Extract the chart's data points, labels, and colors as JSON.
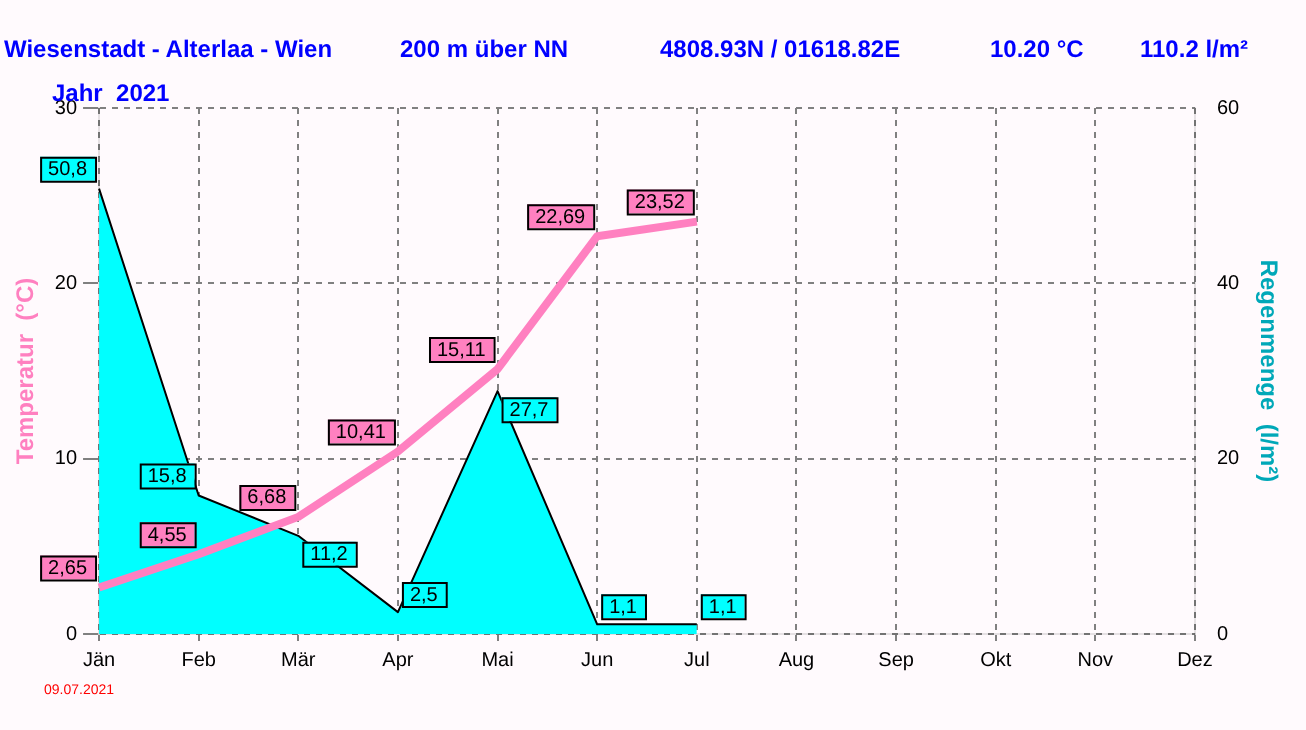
{
  "chart_data": {
    "type": "line",
    "title": "Wiesenstadt - Alterlaa - Wien",
    "subtitle": "Jahr  2021",
    "annotations": [
      "200 m über NN",
      "4808.93N / 01618.82E",
      "10.20 °C",
      "110.2 l/m²",
      "09.07.2021"
    ],
    "ylabel": "Temperatur  (°C)",
    "y2label": "Regenmenge  (l/m²)",
    "categories": [
      "Jän",
      "Feb",
      "Mär",
      "Apr",
      "Mai",
      "Jun",
      "Jul",
      "Aug",
      "Sep",
      "Okt",
      "Nov",
      "Dez"
    ],
    "series": [
      {
        "type": "area",
        "axis": "y2",
        "color": "#00ffff",
        "values": [
          50.8,
          15.8,
          11.2,
          2.5,
          27.7,
          1.1,
          1.1,
          null,
          null,
          null,
          null,
          null
        ],
        "value_labels": [
          "50,8",
          "15,8",
          "11,2",
          "2,5",
          "27,7",
          "1,1",
          "1,1",
          null,
          null,
          null,
          null,
          null
        ]
      },
      {
        "type": "line",
        "axis": "y",
        "color": "#ff80c0",
        "values": [
          2.65,
          4.55,
          6.68,
          10.41,
          15.11,
          22.69,
          23.52,
          null,
          null,
          null,
          null,
          null
        ],
        "value_labels": [
          "2,65",
          "4,55",
          "6,68",
          "10,41",
          "15,11",
          "22,69",
          "23,52",
          null,
          null,
          null,
          null,
          null
        ]
      }
    ],
    "ylim": [
      0,
      30
    ],
    "yticks": [
      0,
      10,
      20,
      30
    ],
    "y2lim": [
      0,
      60
    ],
    "y2ticks": [
      0,
      20,
      40,
      60
    ],
    "grid": true,
    "legend": false,
    "line_style": "solid",
    "marker": "none"
  }
}
